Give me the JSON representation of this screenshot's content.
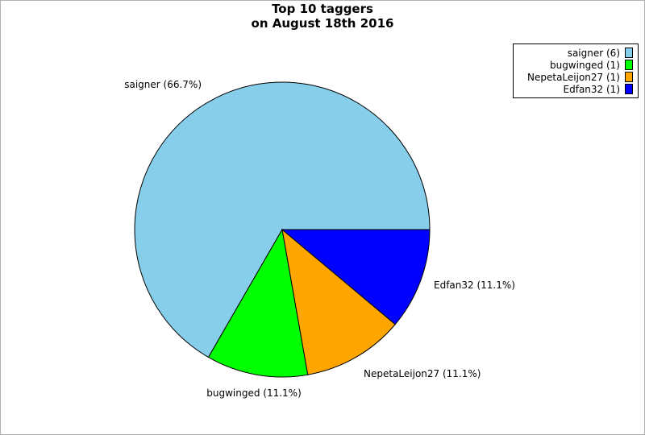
{
  "chart_data": {
    "type": "pie",
    "title": [
      "Top 10 taggers",
      "on August 18th 2016"
    ],
    "legend_position": "top-right",
    "slices": [
      {
        "name": "saigner",
        "value": 6,
        "label": "saigner (66.7%)",
        "legend": "saigner (6)",
        "color": "#87CEEB"
      },
      {
        "name": "bugwinged",
        "value": 1,
        "label": "bugwinged (11.1%)",
        "legend": "bugwinged (1)",
        "color": "#00FF00"
      },
      {
        "name": "NepetaLeijon27",
        "value": 1,
        "label": "NepetaLeijon27 (11.1%)",
        "legend": "NepetaLeijon27 (1)",
        "color": "#FFA500"
      },
      {
        "name": "Edfan32",
        "value": 1,
        "label": "Edfan32 (11.1%)",
        "legend": "Edfan32 (1)",
        "color": "#0000FF"
      }
    ]
  }
}
